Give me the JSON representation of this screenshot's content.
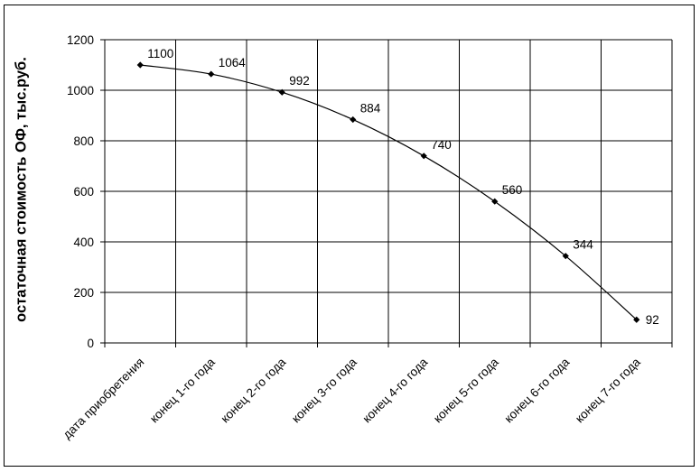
{
  "chart_data": {
    "type": "line",
    "title": "",
    "xlabel": "",
    "ylabel": "остаточная стоимость ОФ, тыс.руб.",
    "ylim": [
      0,
      1200
    ],
    "yticks": [
      0,
      200,
      400,
      600,
      800,
      1000,
      1200
    ],
    "grid": true,
    "categories": [
      "дата приобретения",
      "конец 1-го года",
      "конец 2-го года",
      "конец 3-го года",
      "конец 4-го года",
      "конец 5-го года",
      "конец 6-го года",
      "конец 7-го года"
    ],
    "series": [
      {
        "values": [
          1100,
          1064,
          992,
          884,
          740,
          560,
          344,
          92
        ],
        "color": "#000000",
        "marker": "diamond"
      }
    ]
  }
}
